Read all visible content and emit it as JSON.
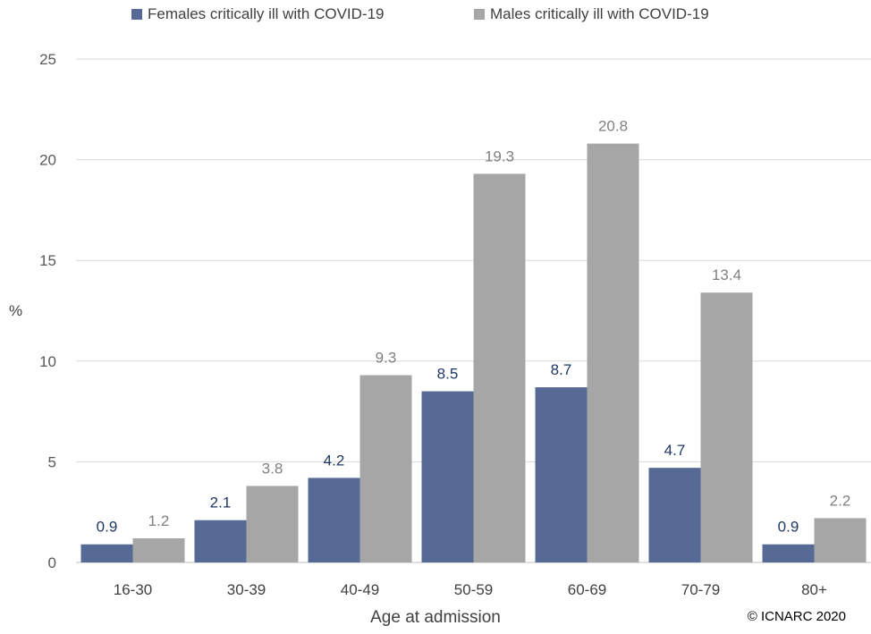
{
  "chart_data": {
    "type": "bar",
    "categories": [
      "16-30",
      "30-39",
      "40-49",
      "50-59",
      "60-69",
      "70-79",
      "80+"
    ],
    "series": [
      {
        "name": "Females critically ill with COVID-19",
        "color": "#576a95",
        "label_color": "#1f3864",
        "values": [
          0.9,
          2.1,
          4.2,
          8.5,
          8.7,
          4.7,
          0.9
        ]
      },
      {
        "name": "Males critically ill with COVID-19",
        "color": "#a6a6a6",
        "label_color": "#808080",
        "values": [
          1.2,
          3.8,
          9.3,
          19.3,
          20.8,
          13.4,
          2.2
        ]
      }
    ],
    "title": "",
    "xlabel": "Age at admission",
    "ylabel": "%",
    "ylim": [
      0,
      25
    ],
    "yticks": [
      0,
      5,
      10,
      15,
      20,
      25
    ],
    "grid": true,
    "legend_position": "top-center"
  },
  "copyright": "© ICNARC 2020"
}
